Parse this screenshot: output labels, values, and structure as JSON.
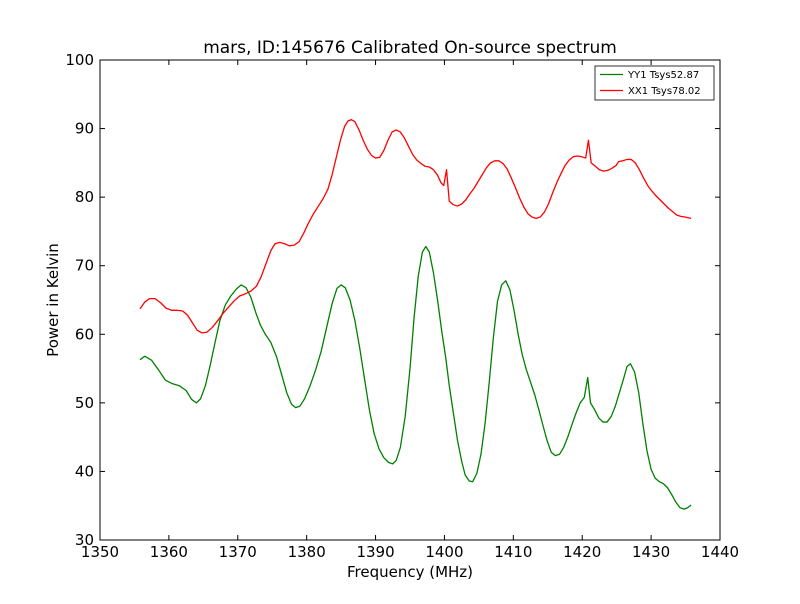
{
  "chart_data": {
    "type": "line",
    "title": "mars, ID:145676 Calibrated On-source spectrum",
    "xlabel": "Frequency (MHz)",
    "ylabel": "Power in Kelvin",
    "xlim": [
      1350,
      1440
    ],
    "ylim": [
      30,
      100
    ],
    "xticks": [
      "1350",
      "1360",
      "1370",
      "1380",
      "1390",
      "1400",
      "1410",
      "1420",
      "1430",
      "1440"
    ],
    "yticks": [
      "30",
      "40",
      "50",
      "60",
      "70",
      "80",
      "90",
      "100"
    ],
    "legend_position": "top-right",
    "grid": false,
    "series": [
      {
        "name": "YY1 Tsys52.87",
        "color": "#008000",
        "points": [
          [
            1355.8,
            56.3
          ],
          [
            1356.5,
            56.8
          ],
          [
            1357.5,
            56.2
          ],
          [
            1358.5,
            54.8
          ],
          [
            1359.5,
            53.3
          ],
          [
            1360.5,
            52.8
          ],
          [
            1361.5,
            52.5
          ],
          [
            1362.5,
            51.8
          ],
          [
            1363.3,
            50.5
          ],
          [
            1364.0,
            50.0
          ],
          [
            1364.6,
            50.6
          ],
          [
            1365.3,
            52.5
          ],
          [
            1366.0,
            55.5
          ],
          [
            1366.7,
            58.8
          ],
          [
            1367.4,
            62.0
          ],
          [
            1368.2,
            64.3
          ],
          [
            1369.0,
            65.6
          ],
          [
            1369.8,
            66.6
          ],
          [
            1370.5,
            67.2
          ],
          [
            1371.2,
            66.8
          ],
          [
            1371.9,
            65.4
          ],
          [
            1372.6,
            63.2
          ],
          [
            1373.3,
            61.3
          ],
          [
            1374.0,
            60.0
          ],
          [
            1374.8,
            58.8
          ],
          [
            1375.6,
            56.8
          ],
          [
            1376.4,
            54.0
          ],
          [
            1377.1,
            51.5
          ],
          [
            1377.8,
            49.8
          ],
          [
            1378.4,
            49.3
          ],
          [
            1379.0,
            49.5
          ],
          [
            1379.7,
            50.6
          ],
          [
            1380.5,
            52.5
          ],
          [
            1381.3,
            54.8
          ],
          [
            1382.1,
            57.5
          ],
          [
            1382.9,
            61.0
          ],
          [
            1383.7,
            64.5
          ],
          [
            1384.4,
            66.7
          ],
          [
            1385.0,
            67.2
          ],
          [
            1385.6,
            66.8
          ],
          [
            1386.3,
            65.0
          ],
          [
            1387.0,
            62.0
          ],
          [
            1387.7,
            58.0
          ],
          [
            1388.4,
            53.5
          ],
          [
            1389.1,
            49.0
          ],
          [
            1389.8,
            45.5
          ],
          [
            1390.5,
            43.3
          ],
          [
            1391.2,
            42.0
          ],
          [
            1391.9,
            41.3
          ],
          [
            1392.5,
            41.1
          ],
          [
            1393.0,
            41.6
          ],
          [
            1393.6,
            43.5
          ],
          [
            1394.3,
            48.0
          ],
          [
            1395.0,
            55.0
          ],
          [
            1395.6,
            62.5
          ],
          [
            1396.2,
            68.5
          ],
          [
            1396.8,
            72.0
          ],
          [
            1397.3,
            72.8
          ],
          [
            1397.8,
            72.0
          ],
          [
            1398.4,
            69.0
          ],
          [
            1399.0,
            65.0
          ],
          [
            1399.6,
            60.5
          ],
          [
            1400.2,
            56.5
          ],
          [
            1400.7,
            52.5
          ],
          [
            1401.3,
            48.5
          ],
          [
            1401.9,
            44.5
          ],
          [
            1402.5,
            41.5
          ],
          [
            1403.0,
            39.5
          ],
          [
            1403.6,
            38.6
          ],
          [
            1404.1,
            38.5
          ],
          [
            1404.7,
            39.7
          ],
          [
            1405.3,
            42.5
          ],
          [
            1405.9,
            47.0
          ],
          [
            1406.5,
            53.0
          ],
          [
            1407.1,
            59.5
          ],
          [
            1407.7,
            64.8
          ],
          [
            1408.3,
            67.2
          ],
          [
            1408.9,
            67.8
          ],
          [
            1409.5,
            66.5
          ],
          [
            1410.1,
            63.5
          ],
          [
            1410.7,
            60.0
          ],
          [
            1411.3,
            57.0
          ],
          [
            1411.9,
            54.8
          ],
          [
            1412.5,
            53.0
          ],
          [
            1413.1,
            51.2
          ],
          [
            1413.7,
            49.0
          ],
          [
            1414.3,
            46.7
          ],
          [
            1414.9,
            44.5
          ],
          [
            1415.5,
            42.8
          ],
          [
            1416.1,
            42.3
          ],
          [
            1416.7,
            42.5
          ],
          [
            1417.3,
            43.5
          ],
          [
            1417.9,
            45.0
          ],
          [
            1418.5,
            46.8
          ],
          [
            1419.1,
            48.5
          ],
          [
            1419.7,
            50.0
          ],
          [
            1420.3,
            50.8
          ],
          [
            1420.8,
            53.7
          ],
          [
            1421.2,
            50.0
          ],
          [
            1421.8,
            49.0
          ],
          [
            1422.4,
            47.8
          ],
          [
            1423.0,
            47.2
          ],
          [
            1423.6,
            47.2
          ],
          [
            1424.2,
            48.0
          ],
          [
            1424.8,
            49.5
          ],
          [
            1425.4,
            51.5
          ],
          [
            1426.0,
            53.5
          ],
          [
            1426.5,
            55.3
          ],
          [
            1427.0,
            55.7
          ],
          [
            1427.6,
            54.5
          ],
          [
            1428.2,
            51.5
          ],
          [
            1428.8,
            47.0
          ],
          [
            1429.4,
            43.0
          ],
          [
            1430.0,
            40.3
          ],
          [
            1430.6,
            39.0
          ],
          [
            1431.2,
            38.5
          ],
          [
            1431.8,
            38.2
          ],
          [
            1432.4,
            37.6
          ],
          [
            1433.0,
            36.6
          ],
          [
            1433.6,
            35.5
          ],
          [
            1434.2,
            34.7
          ],
          [
            1434.8,
            34.5
          ],
          [
            1435.3,
            34.7
          ],
          [
            1435.8,
            35.1
          ]
        ]
      },
      {
        "name": "XX1 Tsys78.02",
        "color": "#ff0000",
        "points": [
          [
            1355.8,
            63.7
          ],
          [
            1356.5,
            64.7
          ],
          [
            1357.2,
            65.2
          ],
          [
            1358.0,
            65.2
          ],
          [
            1358.8,
            64.6
          ],
          [
            1359.6,
            63.8
          ],
          [
            1360.4,
            63.5
          ],
          [
            1361.2,
            63.5
          ],
          [
            1362.0,
            63.4
          ],
          [
            1362.7,
            62.8
          ],
          [
            1363.4,
            61.7
          ],
          [
            1364.1,
            60.6
          ],
          [
            1364.8,
            60.2
          ],
          [
            1365.5,
            60.3
          ],
          [
            1366.3,
            61.0
          ],
          [
            1367.1,
            62.0
          ],
          [
            1367.9,
            63.1
          ],
          [
            1368.7,
            64.0
          ],
          [
            1369.5,
            64.9
          ],
          [
            1370.3,
            65.6
          ],
          [
            1371.1,
            65.9
          ],
          [
            1371.9,
            66.3
          ],
          [
            1372.7,
            67.0
          ],
          [
            1373.4,
            68.4
          ],
          [
            1374.1,
            70.3
          ],
          [
            1374.8,
            72.2
          ],
          [
            1375.4,
            73.2
          ],
          [
            1376.1,
            73.4
          ],
          [
            1376.8,
            73.2
          ],
          [
            1377.5,
            72.9
          ],
          [
            1378.2,
            73.0
          ],
          [
            1378.9,
            73.5
          ],
          [
            1379.6,
            74.8
          ],
          [
            1380.3,
            76.3
          ],
          [
            1381.0,
            77.6
          ],
          [
            1381.7,
            78.7
          ],
          [
            1382.4,
            79.8
          ],
          [
            1383.1,
            81.2
          ],
          [
            1383.7,
            83.3
          ],
          [
            1384.3,
            85.8
          ],
          [
            1384.9,
            88.3
          ],
          [
            1385.5,
            90.3
          ],
          [
            1386.0,
            91.1
          ],
          [
            1386.5,
            91.3
          ],
          [
            1387.0,
            91.0
          ],
          [
            1387.6,
            89.8
          ],
          [
            1388.2,
            88.3
          ],
          [
            1388.8,
            87.0
          ],
          [
            1389.4,
            86.1
          ],
          [
            1390.0,
            85.7
          ],
          [
            1390.6,
            85.8
          ],
          [
            1391.2,
            86.8
          ],
          [
            1391.8,
            88.3
          ],
          [
            1392.4,
            89.5
          ],
          [
            1393.0,
            89.8
          ],
          [
            1393.6,
            89.5
          ],
          [
            1394.2,
            88.6
          ],
          [
            1394.8,
            87.4
          ],
          [
            1395.4,
            86.2
          ],
          [
            1396.0,
            85.4
          ],
          [
            1396.6,
            84.9
          ],
          [
            1397.2,
            84.5
          ],
          [
            1397.8,
            84.4
          ],
          [
            1398.4,
            84.0
          ],
          [
            1399.0,
            83.2
          ],
          [
            1399.5,
            82.1
          ],
          [
            1399.9,
            81.7
          ],
          [
            1400.3,
            84.0
          ],
          [
            1400.7,
            79.4
          ],
          [
            1401.3,
            78.9
          ],
          [
            1401.9,
            78.7
          ],
          [
            1402.5,
            79.0
          ],
          [
            1403.1,
            79.6
          ],
          [
            1403.7,
            80.5
          ],
          [
            1404.3,
            81.3
          ],
          [
            1404.9,
            82.3
          ],
          [
            1405.5,
            83.3
          ],
          [
            1406.1,
            84.3
          ],
          [
            1406.7,
            85.0
          ],
          [
            1407.3,
            85.3
          ],
          [
            1407.9,
            85.3
          ],
          [
            1408.5,
            84.9
          ],
          [
            1409.1,
            84.1
          ],
          [
            1409.7,
            82.8
          ],
          [
            1410.3,
            81.4
          ],
          [
            1410.9,
            79.9
          ],
          [
            1411.5,
            78.6
          ],
          [
            1412.1,
            77.6
          ],
          [
            1412.7,
            77.1
          ],
          [
            1413.3,
            76.9
          ],
          [
            1413.9,
            77.1
          ],
          [
            1414.5,
            77.8
          ],
          [
            1415.1,
            79.0
          ],
          [
            1415.7,
            80.6
          ],
          [
            1416.3,
            82.1
          ],
          [
            1416.9,
            83.4
          ],
          [
            1417.5,
            84.6
          ],
          [
            1418.1,
            85.4
          ],
          [
            1418.7,
            85.9
          ],
          [
            1419.3,
            86.0
          ],
          [
            1419.9,
            85.9
          ],
          [
            1420.5,
            85.7
          ],
          [
            1420.9,
            88.3
          ],
          [
            1421.3,
            85.0
          ],
          [
            1421.9,
            84.5
          ],
          [
            1422.5,
            84.0
          ],
          [
            1423.1,
            83.8
          ],
          [
            1423.7,
            83.9
          ],
          [
            1424.3,
            84.2
          ],
          [
            1424.9,
            84.6
          ],
          [
            1425.3,
            85.2
          ],
          [
            1425.9,
            85.3
          ],
          [
            1426.5,
            85.5
          ],
          [
            1427.1,
            85.5
          ],
          [
            1427.7,
            85.0
          ],
          [
            1428.3,
            84.0
          ],
          [
            1428.9,
            82.8
          ],
          [
            1429.5,
            81.7
          ],
          [
            1430.1,
            80.9
          ],
          [
            1430.7,
            80.2
          ],
          [
            1431.3,
            79.6
          ],
          [
            1431.9,
            79.0
          ],
          [
            1432.5,
            78.4
          ],
          [
            1433.1,
            77.9
          ],
          [
            1433.7,
            77.4
          ],
          [
            1434.3,
            77.2
          ],
          [
            1434.9,
            77.1
          ],
          [
            1435.4,
            77.0
          ],
          [
            1435.8,
            76.9
          ]
        ]
      }
    ]
  }
}
